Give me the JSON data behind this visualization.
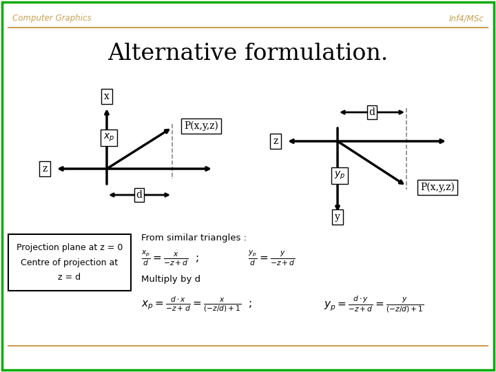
{
  "bg_color": "#ffffff",
  "border_color": "#00aa00",
  "header_line_color": "#c8a050",
  "header_text_color": "#c8a050",
  "title_color": "#000000",
  "title": "Alternative formulation.",
  "header_left": "Computer Graphics",
  "header_right": "Inf4/MSc",
  "box_color": "#000000",
  "arrow_color": "#000000",
  "dashed_color": "#888888"
}
